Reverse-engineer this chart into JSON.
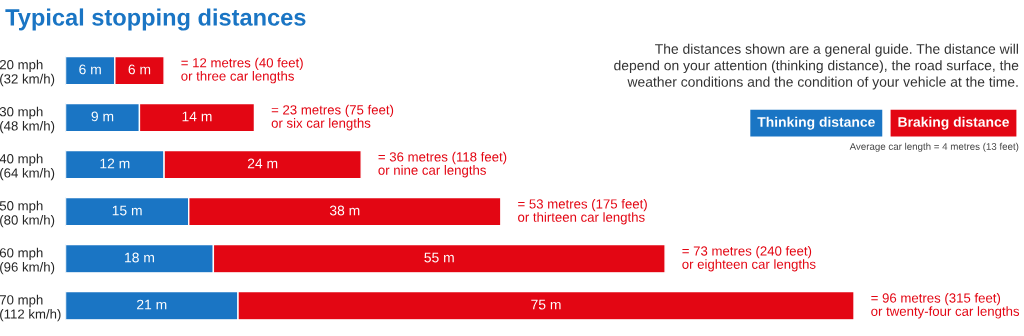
{
  "chart_data": {
    "type": "bar",
    "orientation": "horizontal",
    "stacked": true,
    "title": "Typical stopping distances",
    "categories": [
      "20 mph\n(32 km/h)",
      "30 mph\n(48 km/h)",
      "40 mph\n(64 km/h)",
      "50 mph\n(80 km/h)",
      "60 mph\n(96 km/h)",
      "70 mph\n(112 km/h)"
    ],
    "series": [
      {
        "name": "Thinking distance",
        "color": "#1a75c4",
        "values": [
          6,
          9,
          12,
          15,
          18,
          21
        ],
        "value_labels": [
          "6 m",
          "9 m",
          "12 m",
          "15 m",
          "18 m",
          "21 m"
        ]
      },
      {
        "name": "Braking distance",
        "color": "#e30613",
        "values": [
          6,
          14,
          24,
          38,
          55,
          75
        ],
        "value_labels": [
          "6 m",
          "14 m",
          "24 m",
          "38 m",
          "55 m",
          "75 m"
        ]
      }
    ],
    "totals": [
      "= 12 metres (40 feet)\nor three car lengths",
      "= 23 metres (75 feet)\nor six car lengths",
      "= 36 metres (118 feet)\nor nine car lengths",
      "= 53 metres (175 feet)\nor thirteen car lengths",
      "= 73 metres (240 feet)\nor eighteen car lengths",
      "= 96 metres (315 feet)\nor twenty-four car lengths"
    ],
    "legend": "top right",
    "annotations": [
      "The distances shown are a general guide. The distance will\ndepend on your attention (thinking distance), the road surface, the\nweather conditions and the condition of your vehicle at the time.",
      "Average car length = 4 metres (13 feet)"
    ]
  }
}
